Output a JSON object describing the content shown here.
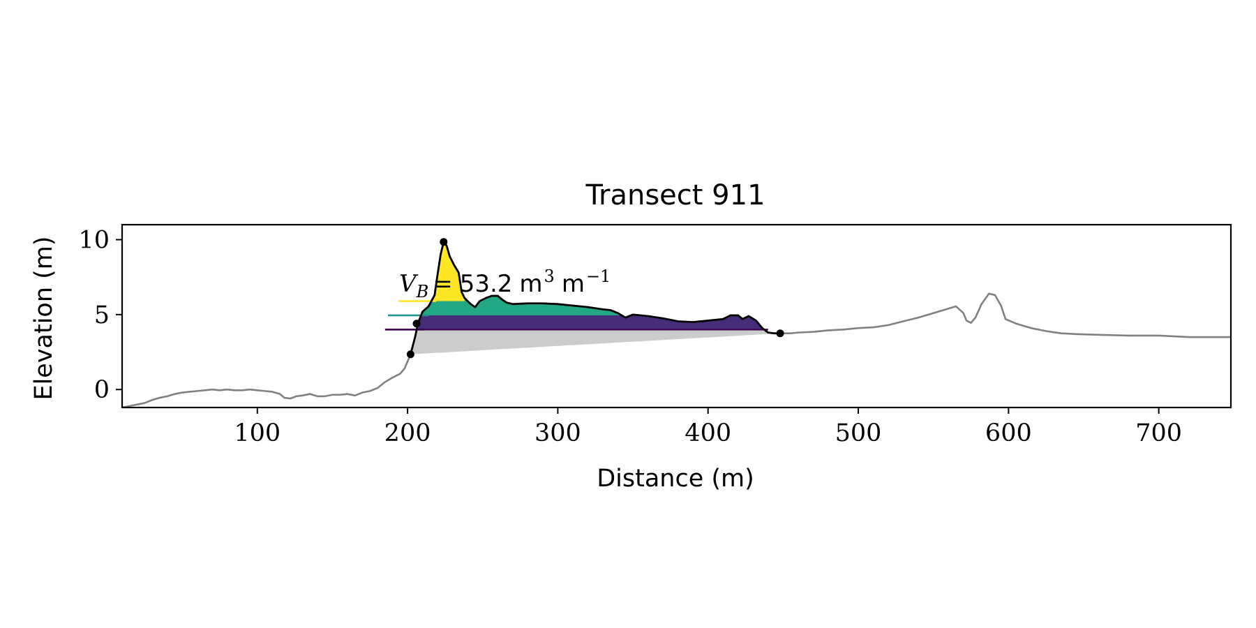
{
  "chart_data": {
    "type": "line",
    "title": "Transect 911",
    "xlabel": "Distance (m)",
    "ylabel": "Elevation (m)",
    "xlim": [
      10,
      748
    ],
    "ylim": [
      -1.2,
      11.0
    ],
    "x_ticks": [
      100,
      200,
      300,
      400,
      500,
      600,
      700
    ],
    "y_ticks": [
      0,
      5,
      10
    ],
    "grid": false,
    "annotation": {
      "symbol": "V",
      "subscript": "B",
      "value": "53.2",
      "unit": "m",
      "unit_exp": "3",
      "unit2": "m",
      "unit2_exp": "−1"
    },
    "colors": {
      "profile": "#808080",
      "dune_profile": "#000000",
      "base_fill": "#cccccc",
      "layer_low": "#472c7a",
      "layer_mid": "#22a884",
      "layer_high": "#fde725",
      "line_low": "#440154",
      "line_mid": "#21918c",
      "line_high": "#fde725"
    },
    "profile": [
      [
        10,
        -1.2
      ],
      [
        15,
        -1.1
      ],
      [
        20,
        -1.0
      ],
      [
        25,
        -0.9
      ],
      [
        30,
        -0.7
      ],
      [
        35,
        -0.55
      ],
      [
        40,
        -0.45
      ],
      [
        45,
        -0.3
      ],
      [
        50,
        -0.2
      ],
      [
        55,
        -0.15
      ],
      [
        60,
        -0.1
      ],
      [
        65,
        -0.05
      ],
      [
        70,
        0.0
      ],
      [
        75,
        -0.05
      ],
      [
        80,
        0.0
      ],
      [
        85,
        -0.05
      ],
      [
        90,
        -0.05
      ],
      [
        95,
        0.0
      ],
      [
        100,
        -0.05
      ],
      [
        105,
        -0.1
      ],
      [
        110,
        -0.15
      ],
      [
        115,
        -0.3
      ],
      [
        118,
        -0.55
      ],
      [
        122,
        -0.6
      ],
      [
        126,
        -0.45
      ],
      [
        130,
        -0.4
      ],
      [
        135,
        -0.3
      ],
      [
        140,
        -0.45
      ],
      [
        145,
        -0.45
      ],
      [
        150,
        -0.35
      ],
      [
        155,
        -0.35
      ],
      [
        160,
        -0.3
      ],
      [
        165,
        -0.4
      ],
      [
        170,
        -0.2
      ],
      [
        175,
        -0.1
      ],
      [
        180,
        0.1
      ],
      [
        185,
        0.5
      ],
      [
        190,
        0.8
      ],
      [
        195,
        1.05
      ],
      [
        198,
        1.4
      ],
      [
        202,
        2.35
      ],
      [
        205,
        3.5
      ],
      [
        207,
        4.45
      ],
      [
        210,
        5.2
      ],
      [
        214,
        5.55
      ],
      [
        218,
        6.3
      ],
      [
        220,
        7.7
      ],
      [
        222,
        9.0
      ],
      [
        224,
        9.85
      ],
      [
        226,
        9.6
      ],
      [
        228,
        8.9
      ],
      [
        231,
        8.3
      ],
      [
        234,
        7.8
      ],
      [
        236,
        6.5
      ],
      [
        238,
        6.1
      ],
      [
        242,
        5.7
      ],
      [
        245,
        5.5
      ],
      [
        248,
        5.9
      ],
      [
        252,
        6.1
      ],
      [
        256,
        6.25
      ],
      [
        260,
        6.25
      ],
      [
        263,
        6.0
      ],
      [
        266,
        5.8
      ],
      [
        270,
        5.7
      ],
      [
        280,
        5.75
      ],
      [
        290,
        5.75
      ],
      [
        300,
        5.7
      ],
      [
        310,
        5.6
      ],
      [
        320,
        5.5
      ],
      [
        330,
        5.35
      ],
      [
        335,
        5.3
      ],
      [
        340,
        5.1
      ],
      [
        345,
        4.8
      ],
      [
        350,
        5.0
      ],
      [
        360,
        4.9
      ],
      [
        370,
        4.75
      ],
      [
        380,
        4.55
      ],
      [
        390,
        4.5
      ],
      [
        400,
        4.6
      ],
      [
        410,
        4.7
      ],
      [
        415,
        4.95
      ],
      [
        420,
        4.95
      ],
      [
        423,
        4.7
      ],
      [
        427,
        4.9
      ],
      [
        432,
        4.6
      ],
      [
        436,
        4.1
      ],
      [
        440,
        3.8
      ],
      [
        444,
        3.75
      ],
      [
        448,
        3.75
      ],
      [
        455,
        3.75
      ],
      [
        460,
        3.8
      ],
      [
        470,
        3.85
      ],
      [
        480,
        3.95
      ],
      [
        490,
        4.0
      ],
      [
        500,
        4.1
      ],
      [
        510,
        4.15
      ],
      [
        520,
        4.3
      ],
      [
        530,
        4.55
      ],
      [
        540,
        4.8
      ],
      [
        550,
        5.1
      ],
      [
        560,
        5.4
      ],
      [
        565,
        5.55
      ],
      [
        570,
        5.1
      ],
      [
        572,
        4.6
      ],
      [
        575,
        4.45
      ],
      [
        578,
        4.8
      ],
      [
        582,
        5.7
      ],
      [
        587,
        6.4
      ],
      [
        591,
        6.3
      ],
      [
        595,
        5.6
      ],
      [
        598,
        4.7
      ],
      [
        605,
        4.4
      ],
      [
        615,
        4.1
      ],
      [
        625,
        3.9
      ],
      [
        635,
        3.75
      ],
      [
        645,
        3.7
      ],
      [
        660,
        3.65
      ],
      [
        680,
        3.6
      ],
      [
        700,
        3.6
      ],
      [
        720,
        3.5
      ],
      [
        748,
        3.5
      ]
    ],
    "dune_segment": [
      202,
      448
    ],
    "markers": [
      [
        202,
        2.35
      ],
      [
        206,
        4.4
      ],
      [
        224,
        9.85
      ],
      [
        448,
        3.75
      ]
    ],
    "base_line": [
      [
        202,
        2.35
      ],
      [
        448,
        3.75
      ]
    ],
    "layers": [
      {
        "level": 4.0,
        "x_from": 207,
        "x_to": 440,
        "line_from": 185
      },
      {
        "level": 4.95,
        "x_from": 210,
        "x_to": 345,
        "line_from": 187
      },
      {
        "level": 5.9,
        "x_from": 215,
        "x_to": 238,
        "line_from": 194
      }
    ]
  }
}
